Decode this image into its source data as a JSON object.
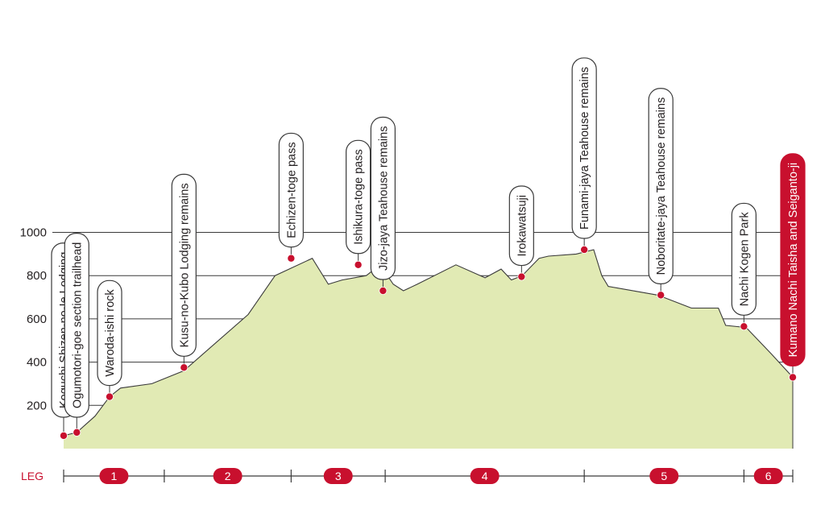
{
  "chart_data": {
    "type": "area",
    "title": "",
    "xlabel": "",
    "ylabel": "",
    "ylim": [
      0,
      1200
    ],
    "x_range": [
      0,
      100
    ],
    "yticks": [
      200,
      400,
      600,
      800,
      1000
    ],
    "grid": true,
    "colors": {
      "fill": "#e1eab4",
      "line": "#3a3a3a",
      "marker": "#c8102e",
      "highlight": "#c8102e",
      "grid": "#3a3a3a"
    },
    "profile": {
      "x": [
        0,
        1.8,
        4.3,
        6.3,
        7.8,
        12.1,
        16.5,
        25.3,
        29.0,
        34.1,
        36.3,
        38.2,
        41.5,
        43.4,
        45.2,
        46.6,
        48.5,
        53.8,
        57.8,
        60.0,
        61.4,
        62.9,
        65.2,
        66.5,
        70.3,
        72.7,
        73.8,
        74.7,
        81.5,
        86.1,
        89.8,
        90.8,
        93.6,
        97.0,
        100
      ],
      "y": [
        60,
        75,
        150,
        240,
        280,
        300,
        360,
        620,
        800,
        880,
        760,
        780,
        800,
        850,
        760,
        730,
        760,
        850,
        790,
        830,
        780,
        800,
        880,
        890,
        900,
        920,
        800,
        750,
        710,
        650,
        650,
        570,
        560,
        440,
        330
      ]
    },
    "waypoints": [
      {
        "name": "Koguchi Shizen-no-Ie Lodging",
        "x": 0,
        "y": 60,
        "highlight": false
      },
      {
        "name": "Ogumotori-goe section trailhead",
        "x": 1.8,
        "y": 75,
        "highlight": false
      },
      {
        "name": "Waroda-ishi rock",
        "x": 6.3,
        "y": 240,
        "highlight": false
      },
      {
        "name": "Kusu-no-Kubo Lodging remains",
        "x": 16.5,
        "y": 375,
        "highlight": false
      },
      {
        "name": "Echizen-toge pass",
        "x": 31.2,
        "y": 880,
        "highlight": false
      },
      {
        "name": "Ishikura-toge pass",
        "x": 40.4,
        "y": 850,
        "highlight": false
      },
      {
        "name": "Jizo-jaya Teahouse remains",
        "x": 43.8,
        "y": 730,
        "highlight": false
      },
      {
        "name": "Irokawatsuji",
        "x": 62.8,
        "y": 795,
        "highlight": false
      },
      {
        "name": "Funami-jaya Teahouse remains",
        "x": 71.4,
        "y": 920,
        "highlight": false
      },
      {
        "name": "Noboritate-jaya Teahouse remains",
        "x": 81.9,
        "y": 710,
        "highlight": false
      },
      {
        "name": "Nachi Kogen Park",
        "x": 93.3,
        "y": 565,
        "highlight": false
      },
      {
        "name": "Kumano Nachi Taisha and Seiganto-ji",
        "x": 100,
        "y": 330,
        "highlight": true
      }
    ],
    "legs": {
      "label": "LEG",
      "boundaries": [
        0,
        13.8,
        31.2,
        44.1,
        71.4,
        93.3,
        100
      ],
      "numbers": [
        "1",
        "2",
        "3",
        "4",
        "5",
        "6"
      ]
    }
  }
}
